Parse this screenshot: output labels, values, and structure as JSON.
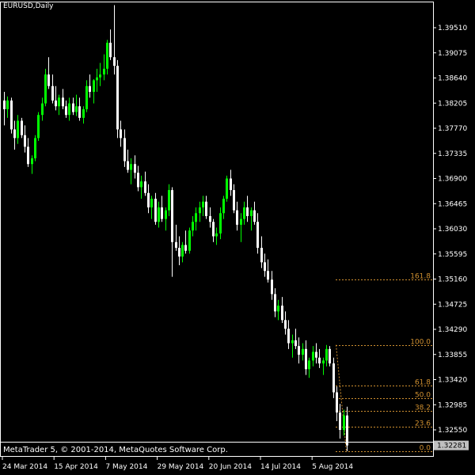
{
  "header": {
    "symbol": "EURUSD,Daily"
  },
  "footer": {
    "copyright": "MetaTrader 5, © 2001-2014, MetaQuotes Software Corp."
  },
  "colors": {
    "background": "#000000",
    "frame": "#FFFFFF",
    "bull_candle": "#00FF00",
    "bear_candle": "#FFFFFF",
    "fibo": "#D09030",
    "axis_text": "#FFFFFF",
    "price_tag_bg": "#C0C0C0",
    "price_tag_text": "#000000"
  },
  "chart_data": {
    "type": "candlestick",
    "symbol": "EURUSD",
    "timeframe": "Daily",
    "y_ticks": [
      "1.39510",
      "1.39075",
      "1.38640",
      "1.38205",
      "1.37770",
      "1.37335",
      "1.36900",
      "1.36465",
      "1.36030",
      "1.35595",
      "1.35160",
      "1.34725",
      "1.34290",
      "1.33855",
      "1.33420",
      "1.32985",
      "1.32550"
    ],
    "y_range": [
      1.3212,
      1.3992
    ],
    "x_ticks": [
      "24 Mar 2014",
      "15 Apr 2014",
      "7 May 2014",
      "29 May 2014",
      "20 Jun 2014",
      "14 Jul 2014",
      "5 Aug 2014"
    ],
    "current_price": "1.32281",
    "fibonacci": [
      {
        "level": "161.8",
        "price": 1.3516
      },
      {
        "level": "100.0",
        "price": 1.3402
      },
      {
        "level": "61.8",
        "price": 1.3332
      },
      {
        "level": "50.0",
        "price": 1.331
      },
      {
        "level": "38.2",
        "price": 1.3288
      },
      {
        "level": "23.6",
        "price": 1.3261
      },
      {
        "level": "0.0",
        "price": 1.3218
      }
    ],
    "candles": [
      [
        1.3825,
        1.384,
        1.3782,
        1.381
      ],
      [
        1.381,
        1.3832,
        1.3795,
        1.3825
      ],
      [
        1.3825,
        1.383,
        1.3768,
        1.3775
      ],
      [
        1.3775,
        1.379,
        1.374,
        1.376
      ],
      [
        1.376,
        1.38,
        1.375,
        1.379
      ],
      [
        1.379,
        1.3795,
        1.376,
        1.3765
      ],
      [
        1.3765,
        1.3782,
        1.3735,
        1.3745
      ],
      [
        1.3745,
        1.376,
        1.371,
        1.3715
      ],
      [
        1.3715,
        1.373,
        1.3698,
        1.3725
      ],
      [
        1.3725,
        1.3765,
        1.372,
        1.376
      ],
      [
        1.376,
        1.3805,
        1.3755,
        1.38
      ],
      [
        1.38,
        1.383,
        1.379,
        1.382
      ],
      [
        1.382,
        1.388,
        1.3815,
        1.387
      ],
      [
        1.387,
        1.39,
        1.3845,
        1.385
      ],
      [
        1.385,
        1.387,
        1.382,
        1.3825
      ],
      [
        1.3825,
        1.385,
        1.3808,
        1.3815
      ],
      [
        1.3815,
        1.3835,
        1.38,
        1.383
      ],
      [
        1.383,
        1.3845,
        1.381,
        1.3815
      ],
      [
        1.3815,
        1.3825,
        1.3795,
        1.38
      ],
      [
        1.38,
        1.383,
        1.379,
        1.382
      ],
      [
        1.382,
        1.383,
        1.38,
        1.3805
      ],
      [
        1.3805,
        1.3835,
        1.3798,
        1.3815
      ],
      [
        1.3815,
        1.383,
        1.379,
        1.3795
      ],
      [
        1.3795,
        1.3815,
        1.3785,
        1.381
      ],
      [
        1.381,
        1.386,
        1.3805,
        1.385
      ],
      [
        1.385,
        1.387,
        1.383,
        1.384
      ],
      [
        1.384,
        1.3862,
        1.382,
        1.386
      ],
      [
        1.386,
        1.388,
        1.384,
        1.3865
      ],
      [
        1.3865,
        1.389,
        1.385,
        1.387
      ],
      [
        1.387,
        1.3905,
        1.386,
        1.388
      ],
      [
        1.388,
        1.393,
        1.387,
        1.3925
      ],
      [
        1.3925,
        1.3948,
        1.3895,
        1.39
      ],
      [
        1.39,
        1.399,
        1.387,
        1.3885
      ],
      [
        1.3885,
        1.3895,
        1.376,
        1.3775
      ],
      [
        1.3775,
        1.379,
        1.3745,
        1.376
      ],
      [
        1.376,
        1.3775,
        1.371,
        1.372
      ],
      [
        1.372,
        1.374,
        1.37,
        1.3705
      ],
      [
        1.3705,
        1.3725,
        1.368,
        1.3715
      ],
      [
        1.3715,
        1.373,
        1.369,
        1.37
      ],
      [
        1.37,
        1.3712,
        1.3668,
        1.3675
      ],
      [
        1.3675,
        1.3695,
        1.3655,
        1.3685
      ],
      [
        1.3685,
        1.3702,
        1.366,
        1.3665
      ],
      [
        1.3665,
        1.368,
        1.363,
        1.364
      ],
      [
        1.364,
        1.366,
        1.362,
        1.3655
      ],
      [
        1.3655,
        1.3665,
        1.361,
        1.3615
      ],
      [
        1.3615,
        1.365,
        1.3605,
        1.364
      ],
      [
        1.364,
        1.366,
        1.3615,
        1.362
      ],
      [
        1.362,
        1.364,
        1.36,
        1.3635
      ],
      [
        1.3635,
        1.368,
        1.3625,
        1.367
      ],
      [
        1.367,
        1.3675,
        1.352,
        1.358
      ],
      [
        1.358,
        1.361,
        1.3565,
        1.357
      ],
      [
        1.357,
        1.359,
        1.354,
        1.3555
      ],
      [
        1.3555,
        1.358,
        1.3545,
        1.3575
      ],
      [
        1.3575,
        1.36,
        1.356,
        1.3565
      ],
      [
        1.3565,
        1.3605,
        1.356,
        1.36
      ],
      [
        1.36,
        1.3625,
        1.359,
        1.3615
      ],
      [
        1.3615,
        1.364,
        1.36,
        1.363
      ],
      [
        1.363,
        1.365,
        1.3615,
        1.364
      ],
      [
        1.364,
        1.366,
        1.3625,
        1.365
      ],
      [
        1.365,
        1.366,
        1.362,
        1.3625
      ],
      [
        1.3625,
        1.364,
        1.3605,
        1.3615
      ],
      [
        1.3615,
        1.362,
        1.358,
        1.359
      ],
      [
        1.359,
        1.3605,
        1.3575,
        1.3595
      ],
      [
        1.3595,
        1.364,
        1.3585,
        1.363
      ],
      [
        1.363,
        1.366,
        1.362,
        1.3655
      ],
      [
        1.3655,
        1.3695,
        1.365,
        1.369
      ],
      [
        1.369,
        1.3705,
        1.366,
        1.367
      ],
      [
        1.367,
        1.368,
        1.363,
        1.3635
      ],
      [
        1.3635,
        1.365,
        1.36,
        1.361
      ],
      [
        1.361,
        1.363,
        1.358,
        1.362
      ],
      [
        1.362,
        1.365,
        1.361,
        1.364
      ],
      [
        1.364,
        1.366,
        1.3615,
        1.3625
      ],
      [
        1.3625,
        1.364,
        1.36,
        1.3635
      ],
      [
        1.3635,
        1.365,
        1.361,
        1.3615
      ],
      [
        1.3615,
        1.363,
        1.356,
        1.357
      ],
      [
        1.357,
        1.359,
        1.3535,
        1.3545
      ],
      [
        1.3545,
        1.356,
        1.352,
        1.353
      ],
      [
        1.353,
        1.355,
        1.351,
        1.3515
      ],
      [
        1.3515,
        1.353,
        1.348,
        1.349
      ],
      [
        1.349,
        1.35,
        1.345,
        1.346
      ],
      [
        1.346,
        1.348,
        1.3445,
        1.347
      ],
      [
        1.347,
        1.3485,
        1.344,
        1.3445
      ],
      [
        1.3445,
        1.346,
        1.342,
        1.343
      ],
      [
        1.343,
        1.3445,
        1.3395,
        1.3405
      ],
      [
        1.3405,
        1.342,
        1.338,
        1.341
      ],
      [
        1.341,
        1.343,
        1.3395,
        1.34
      ],
      [
        1.34,
        1.3415,
        1.337,
        1.3385
      ],
      [
        1.3385,
        1.3405,
        1.3375,
        1.3395
      ],
      [
        1.3395,
        1.341,
        1.335,
        1.336
      ],
      [
        1.336,
        1.338,
        1.3345,
        1.3375
      ],
      [
        1.3375,
        1.34,
        1.3365,
        1.339
      ],
      [
        1.339,
        1.3405,
        1.337,
        1.338
      ],
      [
        1.338,
        1.3395,
        1.3362,
        1.337
      ],
      [
        1.337,
        1.338,
        1.335,
        1.3375
      ],
      [
        1.3375,
        1.3402,
        1.3365,
        1.3395
      ],
      [
        1.3395,
        1.34,
        1.3365,
        1.337
      ],
      [
        1.337,
        1.338,
        1.331,
        1.332
      ],
      [
        1.332,
        1.333,
        1.327,
        1.3285
      ],
      [
        1.3285,
        1.33,
        1.324,
        1.3255
      ],
      [
        1.3255,
        1.329,
        1.3245,
        1.328
      ],
      [
        1.328,
        1.3295,
        1.3218,
        1.3228
      ]
    ]
  }
}
